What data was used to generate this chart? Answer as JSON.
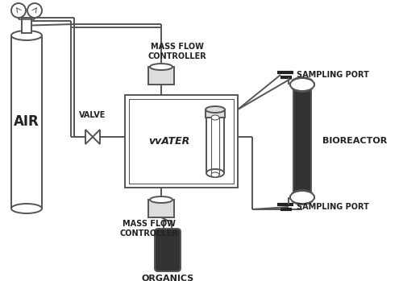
{
  "bg_color": "#ffffff",
  "line_color": "#555555",
  "dark_color": "#222222",
  "fill_color": "#dddddd",
  "dark_fill": "#333333",
  "figsize": [
    5.0,
    3.49
  ],
  "dpi": 100,
  "labels": {
    "air": "AIR",
    "valve": "VALVE",
    "water": "vvATER",
    "mass_flow_top": "MASS FLOW\nCONTROLLER",
    "mass_flow_bot": "MASS FLOW\nCONTROLLER",
    "organics": "ORGANICS",
    "bioreactor": "BIOREACTOR",
    "sampling_top": "SAMPLING PORT",
    "sampling_bot": "SAMPLING PORT"
  }
}
